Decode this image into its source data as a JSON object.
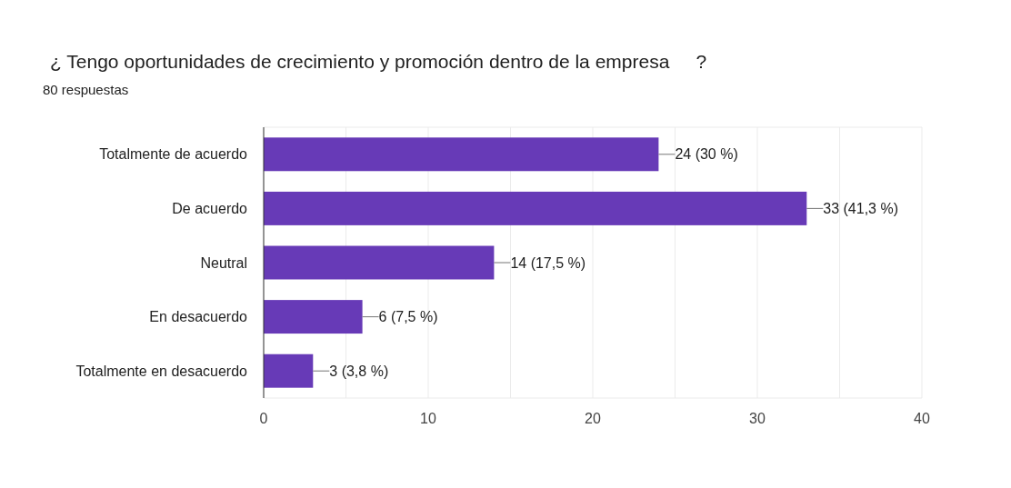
{
  "chart_data": {
    "type": "bar",
    "orientation": "horizontal",
    "title": "¿ Tengo oportunidades de crecimiento y promoción dentro de la empresa     ?",
    "subtitle": "80 respuestas",
    "categories": [
      "Totalmente de acuerdo",
      "De acuerdo",
      "Neutral",
      "En desacuerdo",
      "Totalmente en desacuerdo"
    ],
    "values": [
      24,
      33,
      14,
      6,
      3
    ],
    "value_labels": [
      "24 (30 %)",
      "33 (41,3 %)",
      "14 (17,5 %)",
      "6 (7,5 %)",
      "3 (3,8 %)"
    ],
    "color": "#673ab7",
    "xlim": [
      0,
      40
    ],
    "xticks": [
      0,
      {
        "value": 5,
        "label": null
      },
      10,
      {
        "value": 15,
        "label": null
      },
      20,
      {
        "value": 25,
        "label": null
      },
      30,
      {
        "value": 35,
        "label": null
      },
      40
    ],
    "grid": "x"
  }
}
